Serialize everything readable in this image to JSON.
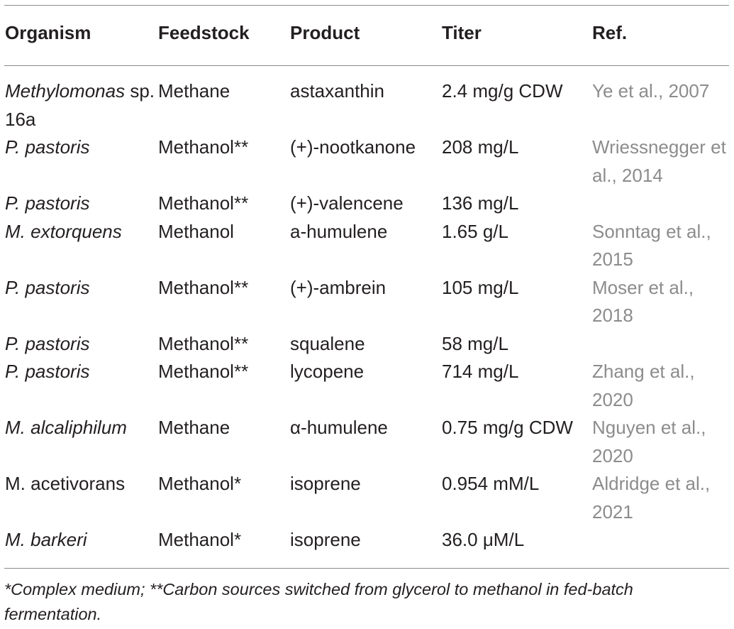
{
  "table": {
    "headers": {
      "organism": "Organism",
      "feedstock": "Feedstock",
      "product": "Product",
      "titer": "Titer",
      "ref": "Ref."
    },
    "rows": [
      {
        "organism": "Methylomonas",
        "organism_suffix": "sp. 16a",
        "feedstock": "Methane",
        "product": "astaxanthin",
        "titer": "2.4 mg/g CDW",
        "ref": "Ye et al., 2007"
      },
      {
        "organism": "P. pastoris",
        "feedstock": "Methanol**",
        "product": "(+)-nootkanone",
        "titer": "208 mg/L",
        "ref": "Wriessnegger et al., 2014"
      },
      {
        "organism": "P. pastoris",
        "feedstock": "Methanol**",
        "product": "(+)-valencene",
        "titer": "136 mg/L",
        "ref": ""
      },
      {
        "organism": "M. extorquens",
        "feedstock": "Methanol",
        "product": "a-humulene",
        "titer": "1.65 g/L",
        "ref": "Sonntag et al., 2015"
      },
      {
        "organism": "P. pastoris",
        "feedstock": "Methanol**",
        "product": "(+)-ambrein",
        "titer": "105 mg/L",
        "ref": "Moser et al., 2018"
      },
      {
        "organism": "P. pastoris",
        "feedstock": "Methanol**",
        "product": "squalene",
        "titer": "58 mg/L",
        "ref": ""
      },
      {
        "organism": "P. pastoris",
        "feedstock": "Methanol**",
        "product": "lycopene",
        "titer": "714 mg/L",
        "ref": "Zhang et al., 2020"
      },
      {
        "organism": "M. alcaliphilum",
        "feedstock": "Methane",
        "product": "α-humulene",
        "titer": "0.75 mg/g CDW",
        "ref": "Nguyen et al., 2020"
      },
      {
        "organism": "M. acetivorans",
        "feedstock": "Methanol*",
        "product": "isoprene",
        "titer": "0.954 mM/L",
        "ref": "Aldridge et al., 2021"
      },
      {
        "organism": "M. barkeri",
        "feedstock": "Methanol*",
        "product": "isoprene",
        "titer": "36.0 μM/L",
        "ref": ""
      }
    ]
  },
  "footnote": "*Complex medium; **Carbon sources switched from glycerol to methanol in fed-batch fermentation."
}
